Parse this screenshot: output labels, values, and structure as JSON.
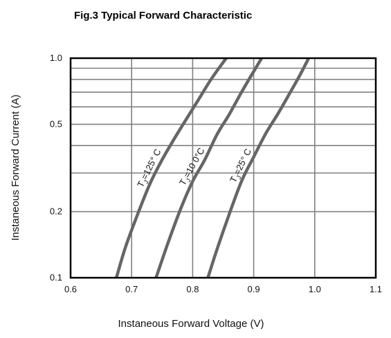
{
  "chart_data": {
    "type": "line",
    "title": "Fig.3  Typical Forward Characteristic",
    "xlabel": "Instaneous Forward Voltage (V)",
    "ylabel": "Instaneous Forward Current  (A)",
    "xlim": [
      0.6,
      1.1
    ],
    "ylim": [
      0.1,
      1.0
    ],
    "yscale": "log",
    "grid": true,
    "x_ticks": [
      0.6,
      0.7,
      0.8,
      0.9,
      1.0,
      1.1
    ],
    "x_tick_labels": [
      "0.6",
      "0.7",
      "0.8",
      "0.9",
      "1.0",
      "1.1"
    ],
    "y_ticks": [
      0.1,
      0.2,
      0.5,
      1.0
    ],
    "y_tick_labels": [
      "0.1",
      "0.2",
      "0.5",
      "1.0"
    ],
    "y_minor_grid": [
      0.3,
      0.4,
      0.6,
      0.7,
      0.8,
      0.9
    ],
    "series": [
      {
        "name": "TJ=125° C",
        "label_main": "T",
        "label_sub": "J",
        "label_rest": "=125° C",
        "x": [
          0.675,
          0.69,
          0.71,
          0.73,
          0.75,
          0.77,
          0.79,
          0.81,
          0.83,
          0.855
        ],
        "y": [
          0.1,
          0.138,
          0.195,
          0.268,
          0.345,
          0.43,
          0.53,
          0.65,
          0.8,
          1.0
        ]
      },
      {
        "name": "TJ=10  0°C",
        "label_main": "T",
        "label_sub": "J",
        "label_rest": "=10  0°C",
        "x": [
          0.74,
          0.76,
          0.78,
          0.8,
          0.82,
          0.84,
          0.86,
          0.88,
          0.9,
          0.913
        ],
        "y": [
          0.1,
          0.145,
          0.205,
          0.275,
          0.345,
          0.45,
          0.555,
          0.7,
          0.87,
          1.0
        ]
      },
      {
        "name": "TJ=25° C",
        "label_main": "T",
        "label_sub": "J",
        "label_rest": "=25° C",
        "x": [
          0.825,
          0.84,
          0.86,
          0.88,
          0.9,
          0.92,
          0.94,
          0.96,
          0.975,
          0.99
        ],
        "y": [
          0.1,
          0.135,
          0.195,
          0.275,
          0.355,
          0.455,
          0.56,
          0.7,
          0.83,
          1.0
        ]
      }
    ],
    "colors": {
      "curve": "#666666",
      "grid": "#808080",
      "frame": "#000000",
      "text": "#111111"
    }
  }
}
